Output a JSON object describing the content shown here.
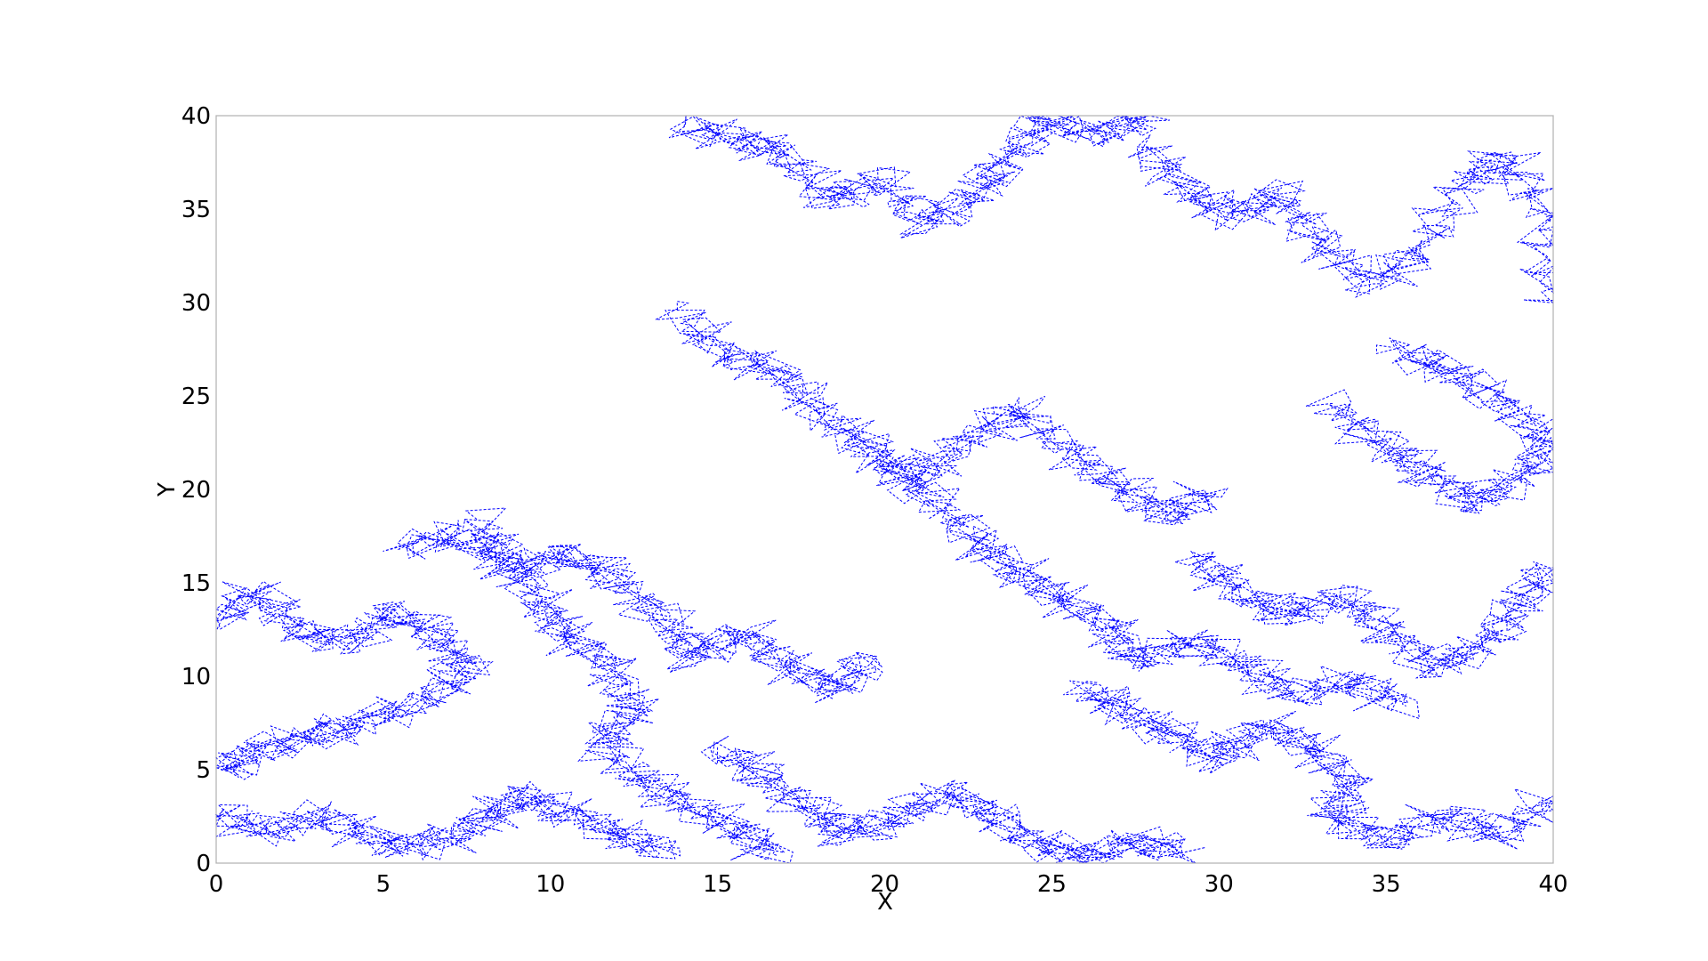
{
  "chart_data": {
    "type": "line",
    "title": "",
    "xlabel": "X",
    "ylabel": "Y",
    "xlim": [
      0,
      40
    ],
    "ylim": [
      0,
      40
    ],
    "xticks": [
      0,
      5,
      10,
      15,
      20,
      25,
      30,
      35,
      40
    ],
    "yticks": [
      0,
      5,
      10,
      15,
      20,
      25,
      30,
      35,
      40
    ],
    "grid": false,
    "legend": "none",
    "line_style": "dashed",
    "colors": {
      "series": "#0000ff",
      "frame": "#b0b0b0",
      "text": "#000000"
    },
    "series": [
      {
        "points": [
          [
            0.0,
            13.0
          ],
          [
            1.2,
            14.6
          ],
          [
            2.5,
            12.4
          ],
          [
            4.0,
            11.8
          ],
          [
            5.3,
            13.6
          ],
          [
            6.8,
            12.0
          ],
          [
            7.5,
            10.2
          ],
          [
            6.0,
            8.6
          ],
          [
            4.2,
            7.4
          ],
          [
            2.8,
            6.8
          ],
          [
            1.2,
            6.0
          ],
          [
            0.3,
            5.0
          ]
        ]
      },
      {
        "points": [
          [
            0.0,
            2.8
          ],
          [
            1.5,
            1.6
          ],
          [
            3.2,
            2.6
          ],
          [
            4.8,
            1.2
          ],
          [
            6.5,
            1.0
          ],
          [
            8.0,
            2.2
          ],
          [
            9.0,
            3.6
          ],
          [
            10.5,
            2.8
          ],
          [
            12.0,
            1.6
          ],
          [
            13.5,
            0.6
          ]
        ]
      },
      {
        "points": [
          [
            5.5,
            16.8
          ],
          [
            7.2,
            17.6
          ],
          [
            9.0,
            15.8
          ],
          [
            10.6,
            16.6
          ],
          [
            12.0,
            15.2
          ],
          [
            13.4,
            13.0
          ],
          [
            14.2,
            11.0
          ],
          [
            15.8,
            12.4
          ],
          [
            17.0,
            10.6
          ],
          [
            18.5,
            9.2
          ],
          [
            19.6,
            11.0
          ]
        ]
      },
      {
        "points": [
          [
            13.8,
            29.6
          ],
          [
            15.2,
            27.2
          ],
          [
            16.8,
            26.4
          ],
          [
            18.2,
            24.0
          ],
          [
            19.5,
            22.2
          ],
          [
            21.0,
            20.6
          ],
          [
            22.6,
            22.8
          ],
          [
            24.0,
            24.4
          ],
          [
            25.5,
            22.0
          ],
          [
            27.0,
            20.2
          ],
          [
            28.4,
            18.6
          ],
          [
            29.8,
            19.8
          ]
        ]
      },
      {
        "points": [
          [
            14.0,
            39.4
          ],
          [
            15.6,
            38.8
          ],
          [
            17.0,
            38.0
          ],
          [
            18.4,
            35.4
          ],
          [
            19.8,
            36.6
          ],
          [
            21.2,
            34.2
          ],
          [
            22.8,
            35.8
          ],
          [
            23.6,
            37.6
          ],
          [
            24.8,
            39.8
          ],
          [
            26.4,
            39.0
          ],
          [
            27.8,
            39.9
          ]
        ]
      },
      {
        "points": [
          [
            27.6,
            38.4
          ],
          [
            29.0,
            36.2
          ],
          [
            30.4,
            34.6
          ],
          [
            31.8,
            35.8
          ],
          [
            33.0,
            33.2
          ],
          [
            34.6,
            31.0
          ],
          [
            36.0,
            32.8
          ],
          [
            37.4,
            36.4
          ],
          [
            38.6,
            37.8
          ],
          [
            39.8,
            34.6
          ],
          [
            39.9,
            30.0
          ]
        ]
      },
      {
        "points": [
          [
            29.2,
            16.4
          ],
          [
            30.6,
            14.6
          ],
          [
            32.0,
            13.2
          ],
          [
            33.6,
            14.2
          ],
          [
            35.0,
            12.6
          ],
          [
            36.4,
            10.4
          ],
          [
            37.8,
            11.6
          ],
          [
            39.0,
            13.8
          ],
          [
            39.9,
            15.8
          ]
        ]
      },
      {
        "points": [
          [
            26.0,
            9.4
          ],
          [
            27.2,
            8.2
          ],
          [
            28.6,
            6.8
          ],
          [
            30.0,
            5.6
          ],
          [
            31.4,
            7.4
          ],
          [
            32.8,
            6.2
          ],
          [
            34.0,
            4.2
          ],
          [
            33.4,
            2.4
          ],
          [
            35.0,
            1.2
          ],
          [
            36.8,
            2.6
          ],
          [
            38.4,
            1.4
          ],
          [
            39.8,
            3.4
          ]
        ]
      },
      {
        "points": [
          [
            15.0,
            6.2
          ],
          [
            16.4,
            4.6
          ],
          [
            17.8,
            2.8
          ],
          [
            18.8,
            1.6
          ],
          [
            20.4,
            2.4
          ],
          [
            21.8,
            3.8
          ],
          [
            23.2,
            2.6
          ],
          [
            24.6,
            1.0
          ],
          [
            26.0,
            0.4
          ],
          [
            27.6,
            1.2
          ],
          [
            29.0,
            0.6
          ]
        ]
      },
      {
        "points": [
          [
            19.8,
            21.6
          ],
          [
            21.4,
            19.4
          ],
          [
            22.8,
            17.2
          ],
          [
            24.0,
            15.6
          ],
          [
            25.2,
            14.2
          ],
          [
            26.8,
            12.6
          ],
          [
            27.6,
            10.8
          ],
          [
            29.2,
            12.0
          ],
          [
            30.8,
            10.6
          ],
          [
            32.2,
            9.0
          ],
          [
            34.0,
            9.8
          ],
          [
            35.6,
            8.4
          ]
        ]
      },
      {
        "points": [
          [
            33.4,
            24.6
          ],
          [
            34.8,
            22.4
          ],
          [
            36.2,
            21.0
          ],
          [
            37.6,
            19.2
          ],
          [
            39.0,
            20.6
          ],
          [
            39.9,
            22.6
          ],
          [
            38.4,
            24.8
          ],
          [
            36.8,
            26.4
          ],
          [
            35.2,
            27.6
          ]
        ]
      },
      {
        "points": [
          [
            7.8,
            18.4
          ],
          [
            8.6,
            16.2
          ],
          [
            9.8,
            14.0
          ],
          [
            10.4,
            12.2
          ],
          [
            11.8,
            10.6
          ],
          [
            12.6,
            8.2
          ],
          [
            11.4,
            6.6
          ],
          [
            12.8,
            4.4
          ],
          [
            14.2,
            3.0
          ],
          [
            15.6,
            1.8
          ],
          [
            16.8,
            0.4
          ]
        ]
      }
    ]
  }
}
